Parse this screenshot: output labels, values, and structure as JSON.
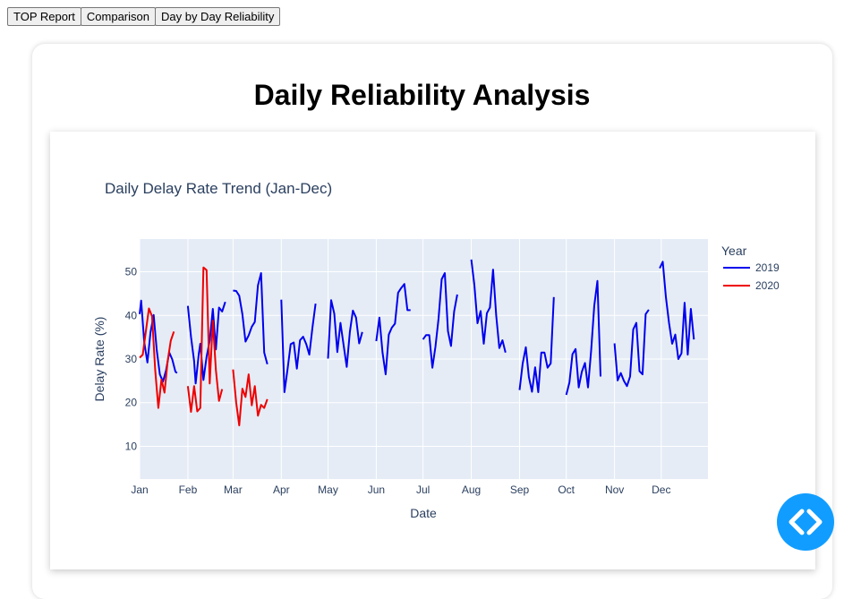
{
  "tabs": [
    {
      "label": "TOP Report"
    },
    {
      "label": "Comparison"
    },
    {
      "label": "Day by Day Reliability"
    }
  ],
  "page_title": "Daily Reliability Analysis",
  "fab": {
    "icon": "code-icon"
  },
  "colors": {
    "series_2019": "#0000ee",
    "series_2020": "#ee0000",
    "plot_bg": "#e5ecf6",
    "fab": "#119dff"
  },
  "chart_data": {
    "type": "line",
    "title": "Daily Delay Rate Trend (Jan-Dec)",
    "xlabel": "Date",
    "ylabel": "Delay Rate (%)",
    "xlim": [
      "2000-01-01",
      "2000-12-31"
    ],
    "ylim": [
      2.5,
      57.5
    ],
    "yticks": [
      10,
      20,
      30,
      40,
      50
    ],
    "xticks": [
      {
        "date": "2000-01-01",
        "label": "Jan"
      },
      {
        "date": "2000-02-01",
        "label": "Feb"
      },
      {
        "date": "2000-03-01",
        "label": "Mar"
      },
      {
        "date": "2000-04-01",
        "label": "Apr"
      },
      {
        "date": "2000-05-01",
        "label": "May"
      },
      {
        "date": "2000-06-01",
        "label": "Jun"
      },
      {
        "date": "2000-07-01",
        "label": "Jul"
      },
      {
        "date": "2000-08-01",
        "label": "Aug"
      },
      {
        "date": "2000-09-01",
        "label": "Sep"
      },
      {
        "date": "2000-10-01",
        "label": "Oct"
      },
      {
        "date": "2000-11-01",
        "label": "Nov"
      },
      {
        "date": "2000-12-01",
        "label": "Dec"
      }
    ],
    "grid": true,
    "legend": {
      "title": "Year",
      "placement": "right"
    },
    "series": [
      {
        "name": "2019",
        "segments": [
          [
            [
              "2000-01-01",
              40.3
            ],
            [
              "2000-01-02",
              43.4
            ],
            [
              "2000-01-04",
              33.8
            ],
            [
              "2000-01-06",
              29.2
            ],
            [
              "2000-01-08",
              36.2
            ],
            [
              "2000-01-10",
              40.1
            ],
            [
              "2000-01-12",
              32.1
            ],
            [
              "2000-01-14",
              26.5
            ],
            [
              "2000-01-16",
              24.8
            ],
            [
              "2000-01-18",
              27.5
            ],
            [
              "2000-01-20",
              31.5
            ],
            [
              "2000-01-22",
              29.9
            ],
            [
              "2000-01-24",
              27.1
            ],
            [
              "2000-01-25",
              26.8
            ]
          ],
          [
            [
              "2000-02-01",
              42.2
            ],
            [
              "2000-02-03",
              35.1
            ],
            [
              "2000-02-05",
              29.5
            ],
            [
              "2000-02-06",
              24.4
            ],
            [
              "2000-02-08",
              31.2
            ],
            [
              "2000-02-09",
              33.5
            ],
            [
              "2000-02-11",
              25.2
            ],
            [
              "2000-02-13",
              30.5
            ],
            [
              "2000-02-15",
              34.2
            ],
            [
              "2000-02-17",
              41.5
            ],
            [
              "2000-02-19",
              32.2
            ],
            [
              "2000-02-21",
              41.8
            ],
            [
              "2000-02-23",
              40.9
            ],
            [
              "2000-02-25",
              43.1
            ]
          ],
          [
            [
              "2000-03-01",
              45.7
            ],
            [
              "2000-03-03",
              45.6
            ],
            [
              "2000-03-05",
              44.5
            ],
            [
              "2000-03-07",
              40.3
            ],
            [
              "2000-03-09",
              34.0
            ],
            [
              "2000-03-11",
              35.4
            ],
            [
              "2000-03-13",
              37.4
            ],
            [
              "2000-03-15",
              38.5
            ],
            [
              "2000-03-17",
              46.9
            ],
            [
              "2000-03-19",
              49.7
            ],
            [
              "2000-03-21",
              31.5
            ],
            [
              "2000-03-23",
              28.8
            ]
          ],
          [
            [
              "2000-04-01",
              43.6
            ],
            [
              "2000-04-03",
              22.4
            ],
            [
              "2000-04-05",
              27.7
            ],
            [
              "2000-04-07",
              33.4
            ],
            [
              "2000-04-09",
              33.8
            ],
            [
              "2000-04-11",
              27.8
            ],
            [
              "2000-04-13",
              34.3
            ],
            [
              "2000-04-15",
              35.1
            ],
            [
              "2000-04-17",
              33.4
            ],
            [
              "2000-04-19",
              31.0
            ],
            [
              "2000-04-21",
              37.2
            ],
            [
              "2000-04-23",
              42.7
            ]
          ],
          [
            [
              "2000-05-01",
              30.1
            ],
            [
              "2000-05-03",
              43.5
            ],
            [
              "2000-05-05",
              40.4
            ],
            [
              "2000-05-07",
              31.6
            ],
            [
              "2000-05-09",
              38.3
            ],
            [
              "2000-05-11",
              33.2
            ],
            [
              "2000-05-13",
              28.2
            ],
            [
              "2000-05-15",
              36.2
            ],
            [
              "2000-05-17",
              41.1
            ],
            [
              "2000-05-19",
              39.5
            ],
            [
              "2000-05-21",
              33.6
            ],
            [
              "2000-05-23",
              36.2
            ]
          ],
          [
            [
              "2000-06-01",
              34.1
            ],
            [
              "2000-06-03",
              39.5
            ],
            [
              "2000-06-05",
              31.5
            ],
            [
              "2000-06-07",
              26.5
            ],
            [
              "2000-06-09",
              35.6
            ],
            [
              "2000-06-11",
              37.2
            ],
            [
              "2000-06-13",
              38.1
            ],
            [
              "2000-06-15",
              45.2
            ],
            [
              "2000-06-17",
              46.3
            ],
            [
              "2000-06-19",
              47.2
            ],
            [
              "2000-06-21",
              41.2
            ],
            [
              "2000-06-23",
              41.2
            ]
          ],
          [
            [
              "2000-07-01",
              34.5
            ],
            [
              "2000-07-03",
              35.5
            ],
            [
              "2000-07-05",
              35.5
            ],
            [
              "2000-07-07",
              28.0
            ],
            [
              "2000-07-09",
              32.8
            ],
            [
              "2000-07-11",
              39.3
            ],
            [
              "2000-07-13",
              48.3
            ],
            [
              "2000-07-15",
              49.7
            ],
            [
              "2000-07-17",
              36.4
            ],
            [
              "2000-07-19",
              33.0
            ],
            [
              "2000-07-21",
              40.9
            ],
            [
              "2000-07-23",
              44.8
            ]
          ],
          [
            [
              "2000-08-01",
              52.8
            ],
            [
              "2000-08-03",
              47.0
            ],
            [
              "2000-08-05",
              38.2
            ],
            [
              "2000-08-07",
              41.0
            ],
            [
              "2000-08-09",
              33.5
            ],
            [
              "2000-08-11",
              40.5
            ],
            [
              "2000-08-13",
              41.8
            ],
            [
              "2000-08-15",
              50.5
            ],
            [
              "2000-08-17",
              40.0
            ],
            [
              "2000-08-19",
              32.5
            ],
            [
              "2000-08-21",
              34.3
            ],
            [
              "2000-08-23",
              31.5
            ]
          ],
          [
            [
              "2000-09-01",
              22.9
            ],
            [
              "2000-09-03",
              29.0
            ],
            [
              "2000-09-05",
              32.7
            ],
            [
              "2000-09-07",
              25.9
            ],
            [
              "2000-09-09",
              22.5
            ],
            [
              "2000-09-11",
              28.1
            ],
            [
              "2000-09-13",
              22.4
            ],
            [
              "2000-09-15",
              31.5
            ],
            [
              "2000-09-17",
              31.5
            ],
            [
              "2000-09-19",
              28.0
            ],
            [
              "2000-09-21",
              29.0
            ],
            [
              "2000-09-23",
              44.2
            ]
          ],
          [
            [
              "2000-10-01",
              21.8
            ],
            [
              "2000-10-03",
              24.6
            ],
            [
              "2000-10-05",
              31.1
            ],
            [
              "2000-10-07",
              32.3
            ],
            [
              "2000-10-09",
              23.5
            ],
            [
              "2000-10-11",
              27.1
            ],
            [
              "2000-10-13",
              29.1
            ],
            [
              "2000-10-15",
              23.5
            ],
            [
              "2000-10-17",
              32.0
            ],
            [
              "2000-10-19",
              42.3
            ],
            [
              "2000-10-21",
              47.9
            ],
            [
              "2000-10-23",
              26.0
            ]
          ],
          [
            [
              "2000-11-01",
              33.6
            ],
            [
              "2000-11-03",
              25.1
            ],
            [
              "2000-11-05",
              26.8
            ],
            [
              "2000-11-07",
              25.0
            ],
            [
              "2000-11-09",
              23.8
            ],
            [
              "2000-11-11",
              26.0
            ],
            [
              "2000-11-13",
              36.8
            ],
            [
              "2000-11-15",
              38.3
            ],
            [
              "2000-11-17",
              27.2
            ],
            [
              "2000-11-19",
              26.5
            ],
            [
              "2000-11-21",
              40.3
            ],
            [
              "2000-11-23",
              41.3
            ]
          ],
          [
            [
              "2000-11-30",
              50.8
            ],
            [
              "2000-12-02",
              52.3
            ],
            [
              "2000-12-04",
              44.2
            ],
            [
              "2000-12-06",
              38.3
            ],
            [
              "2000-12-08",
              33.5
            ],
            [
              "2000-12-10",
              35.6
            ],
            [
              "2000-12-12",
              30.0
            ],
            [
              "2000-12-14",
              31.3
            ],
            [
              "2000-12-16",
              42.9
            ],
            [
              "2000-12-18",
              31.0
            ],
            [
              "2000-12-20",
              41.5
            ],
            [
              "2000-12-22",
              34.5
            ]
          ]
        ]
      },
      {
        "name": "2020",
        "segments": [
          [
            [
              "2000-01-01",
              30.3
            ],
            [
              "2000-01-03",
              31.0
            ],
            [
              "2000-01-05",
              36.4
            ],
            [
              "2000-01-07",
              41.6
            ],
            [
              "2000-01-09",
              39.8
            ],
            [
              "2000-01-11",
              27.5
            ],
            [
              "2000-01-13",
              18.8
            ],
            [
              "2000-01-15",
              25.3
            ],
            [
              "2000-01-17",
              22.3
            ],
            [
              "2000-01-19",
              29.5
            ],
            [
              "2000-01-21",
              34.2
            ],
            [
              "2000-01-23",
              36.3
            ]
          ],
          [
            [
              "2000-02-01",
              23.8
            ],
            [
              "2000-02-03",
              17.9
            ],
            [
              "2000-02-05",
              23.8
            ],
            [
              "2000-02-07",
              18.0
            ],
            [
              "2000-02-09",
              18.8
            ],
            [
              "2000-02-11",
              51.0
            ],
            [
              "2000-02-13",
              50.4
            ],
            [
              "2000-02-15",
              24.4
            ],
            [
              "2000-02-17",
              38.8
            ],
            [
              "2000-02-19",
              27.5
            ],
            [
              "2000-02-21",
              20.4
            ],
            [
              "2000-02-23",
              23.1
            ]
          ],
          [
            [
              "2000-03-01",
              27.6
            ],
            [
              "2000-03-03",
              20.0
            ],
            [
              "2000-03-05",
              14.8
            ],
            [
              "2000-03-07",
              23.2
            ],
            [
              "2000-03-09",
              21.3
            ],
            [
              "2000-03-11",
              26.5
            ],
            [
              "2000-03-13",
              19.4
            ],
            [
              "2000-03-15",
              23.8
            ],
            [
              "2000-03-17",
              17.0
            ],
            [
              "2000-03-19",
              19.5
            ],
            [
              "2000-03-21",
              18.8
            ],
            [
              "2000-03-23",
              20.8
            ]
          ]
        ]
      }
    ]
  }
}
